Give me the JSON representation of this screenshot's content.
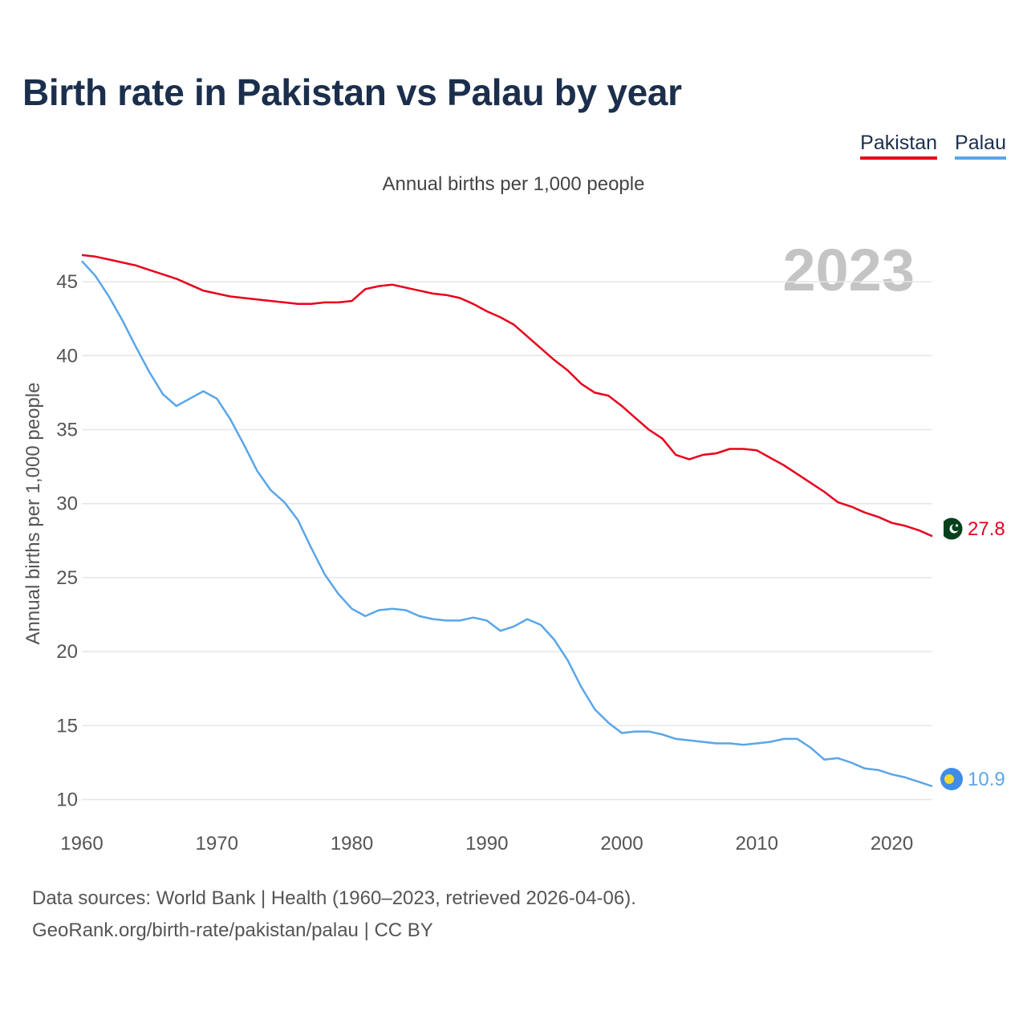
{
  "header": {
    "title": "Birth rate in Pakistan vs Palau by year"
  },
  "legend": {
    "items": [
      "Pakistan",
      "Palau"
    ]
  },
  "colors": {
    "pakistan": "#e8001c",
    "palau": "#5aa6e8",
    "title": "#1b2f4d",
    "year_watermark": "#c4c4c4"
  },
  "footer": {
    "line1": "Data sources: World Bank | Health (1960–2023, retrieved 2026-04-06).",
    "line2": "GeoRank.org/birth-rate/pakistan/palau | CC BY"
  },
  "chart_data": {
    "type": "line",
    "title": "Birth rate in Pakistan vs Palau by year",
    "subtitle": "Annual births per 1,000 people",
    "xlabel": "",
    "ylabel": "Annual births per 1,000 people",
    "year_label": "2023",
    "xlim": [
      1960,
      2023
    ],
    "ylim": [
      9,
      47.5
    ],
    "x_ticks": [
      1960,
      1970,
      1980,
      1990,
      2000,
      2010,
      2020
    ],
    "y_ticks": [
      10,
      15,
      20,
      25,
      30,
      35,
      40,
      45
    ],
    "grid": true,
    "legend_position": "top-right",
    "x": [
      1960,
      1961,
      1962,
      1963,
      1964,
      1965,
      1966,
      1967,
      1968,
      1969,
      1970,
      1971,
      1972,
      1973,
      1974,
      1975,
      1976,
      1977,
      1978,
      1979,
      1980,
      1981,
      1982,
      1983,
      1984,
      1985,
      1986,
      1987,
      1988,
      1989,
      1990,
      1991,
      1992,
      1993,
      1994,
      1995,
      1996,
      1997,
      1998,
      1999,
      2000,
      2001,
      2002,
      2003,
      2004,
      2005,
      2006,
      2007,
      2008,
      2009,
      2010,
      2011,
      2012,
      2013,
      2014,
      2015,
      2016,
      2017,
      2018,
      2019,
      2020,
      2021,
      2022,
      2023
    ],
    "series": [
      {
        "name": "Pakistan",
        "color": "#e8001c",
        "end_label": "27.8",
        "values": [
          46.8,
          46.7,
          46.5,
          46.3,
          46.1,
          45.8,
          45.5,
          45.2,
          44.8,
          44.4,
          44.2,
          44.0,
          43.9,
          43.8,
          43.7,
          43.6,
          43.5,
          43.5,
          43.6,
          43.6,
          43.7,
          44.5,
          44.7,
          44.8,
          44.6,
          44.4,
          44.2,
          44.1,
          43.9,
          43.5,
          43.0,
          42.6,
          42.1,
          41.3,
          40.5,
          39.7,
          39.0,
          38.1,
          37.5,
          37.3,
          36.6,
          35.8,
          35.0,
          34.4,
          33.3,
          33.0,
          33.3,
          33.4,
          33.7,
          33.7,
          33.6,
          33.1,
          32.6,
          32.0,
          31.4,
          30.8,
          30.1,
          29.8,
          29.4,
          29.1,
          28.7,
          28.5,
          28.2,
          27.8
        ]
      },
      {
        "name": "Palau",
        "color": "#5aa6e8",
        "end_label": "10.9",
        "values": [
          46.4,
          45.4,
          44.0,
          42.4,
          40.6,
          38.9,
          37.4,
          36.6,
          37.1,
          37.6,
          37.1,
          35.7,
          34.0,
          32.2,
          30.9,
          30.1,
          28.9,
          27.0,
          25.2,
          23.9,
          22.9,
          22.4,
          22.8,
          22.9,
          22.8,
          22.4,
          22.2,
          22.1,
          22.1,
          22.3,
          22.1,
          21.4,
          21.7,
          22.2,
          21.8,
          20.8,
          19.4,
          17.6,
          16.1,
          15.2,
          14.5,
          14.6,
          14.6,
          14.4,
          14.1,
          14.0,
          13.9,
          13.8,
          13.8,
          13.7,
          13.8,
          13.9,
          14.1,
          14.1,
          13.5,
          12.7,
          12.8,
          12.5,
          12.1,
          12.0,
          11.7,
          11.5,
          11.2,
          10.9
        ]
      }
    ]
  }
}
